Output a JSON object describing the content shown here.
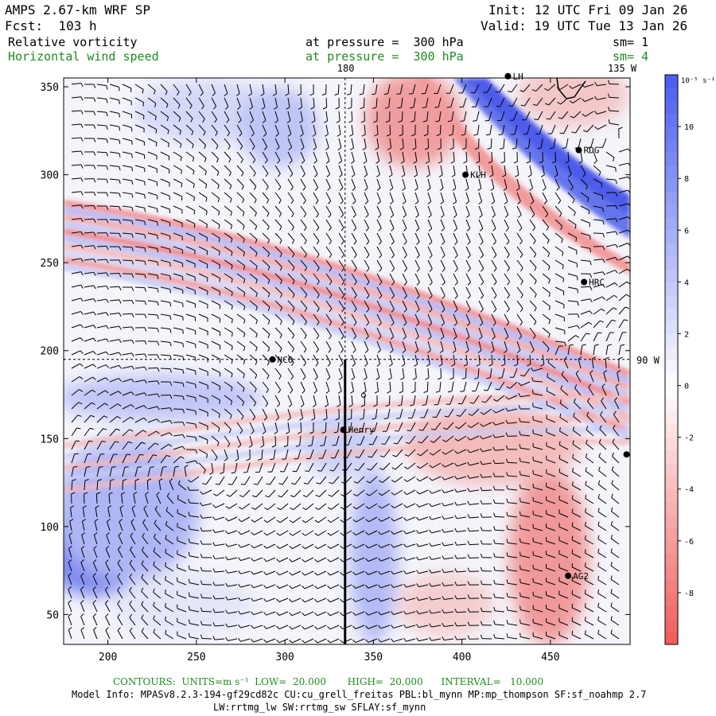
{
  "header": {
    "model": "AMPS 2.67-km WRF SP",
    "forecast": "Fcst:  103 h",
    "init": "Init: 12 UTC Fri 09 Jan 26",
    "valid": "Valid: 19 UTC Tue 13 Jan 26",
    "field1": {
      "name": "Relative vorticity",
      "level": "at pressure =  300 hPa",
      "smooth": "sm= 1"
    },
    "field2": {
      "name": "Horizontal wind speed",
      "level": "at pressure =  300 hPa",
      "smooth": "sm= 4"
    }
  },
  "colors": {
    "positive": "#4a5cf0",
    "negative": "#f05a5a",
    "text_green": "#1f8a1f",
    "barb": "#000000"
  },
  "chart_data": {
    "type": "heatmap",
    "title": "Relative vorticity at pressure = 300 hPa",
    "xlim": [
      175,
      495
    ],
    "ylim": [
      33,
      355
    ],
    "x_ticks": [
      200,
      250,
      300,
      350,
      400,
      450
    ],
    "y_ticks": [
      50,
      100,
      150,
      200,
      250,
      300,
      350
    ],
    "colorbar": {
      "unit": "10⁻⁵ s⁻¹",
      "min": -10,
      "max": 12,
      "ticks": [
        -8,
        -6,
        -4,
        -2,
        0,
        2,
        4,
        6,
        8,
        10
      ]
    },
    "grid_lines": [
      {
        "label": "180",
        "orientation": "vertical",
        "x": 334
      },
      {
        "label": "90 W",
        "orientation": "horizontal",
        "y": 195
      },
      {
        "label": "135 W",
        "orientation": "corner",
        "x": 495,
        "y": 355
      }
    ],
    "cross_section": {
      "x": 334,
      "y_from": 33,
      "y_to": 195
    },
    "stations": [
      {
        "name": "LH",
        "x": 426,
        "y": 356
      },
      {
        "name": "RDG",
        "x": 466,
        "y": 314
      },
      {
        "name": "KLH",
        "x": 402,
        "y": 300
      },
      {
        "name": "HRC",
        "x": 469,
        "y": 239
      },
      {
        "name": "NCO",
        "x": 293,
        "y": 195
      },
      {
        "name": "Henry",
        "x": 333,
        "y": 155
      },
      {
        "name": "",
        "x": 493,
        "y": 141
      },
      {
        "name": "AG2",
        "x": 460,
        "y": 72
      }
    ],
    "vorticity_features": [
      {
        "sign": "positive",
        "description": "blue band",
        "x": 445,
        "y": 315,
        "value": 10
      },
      {
        "sign": "positive",
        "x": 200,
        "y": 95,
        "value": 8
      },
      {
        "sign": "positive",
        "x": 230,
        "y": 175,
        "value": 4
      },
      {
        "sign": "positive",
        "x": 360,
        "y": 100,
        "value": 4
      },
      {
        "sign": "negative",
        "x": 375,
        "y": 330,
        "value": -6
      },
      {
        "sign": "negative",
        "x": 470,
        "y": 100,
        "value": -7
      },
      {
        "sign": "negative",
        "x": 430,
        "y": 175,
        "value": -4
      }
    ]
  },
  "footer": {
    "contours": "CONTOURS:  UNITS=m s⁻¹  LOW=  20.000       HIGH=  20.000      INTERVAL=   10.000",
    "model_info_1": "Model Info: MPASv8.2.3-194-gf29cd82c CU:cu_grell_freitas PBL:bl_mynn MP:mp_thompson SF:sf_noahmp 2.7",
    "model_info_2": "LW:rrtmg_lw SW:rrtmg_sw SFLAY:sf_mynn"
  }
}
